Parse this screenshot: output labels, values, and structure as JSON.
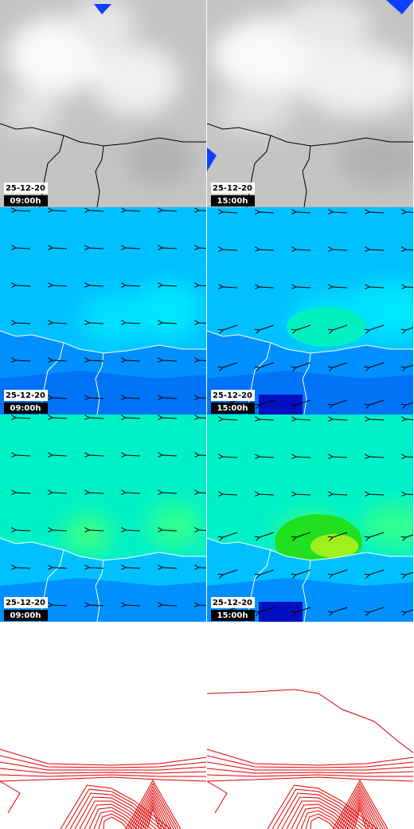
{
  "panels": [
    {
      "date": "25-12-20",
      "time": "09:00h"
    },
    {
      "date": "25-12-20",
      "time": "15:00h"
    },
    {
      "date": "25-12-20",
      "time": "09:00h"
    },
    {
      "date": "25-12-20",
      "time": "15:00h"
    },
    {
      "date": "25-12-20",
      "time": "09:00h"
    },
    {
      "date": "25-12-20",
      "time": "15:00h"
    }
  ]
}
